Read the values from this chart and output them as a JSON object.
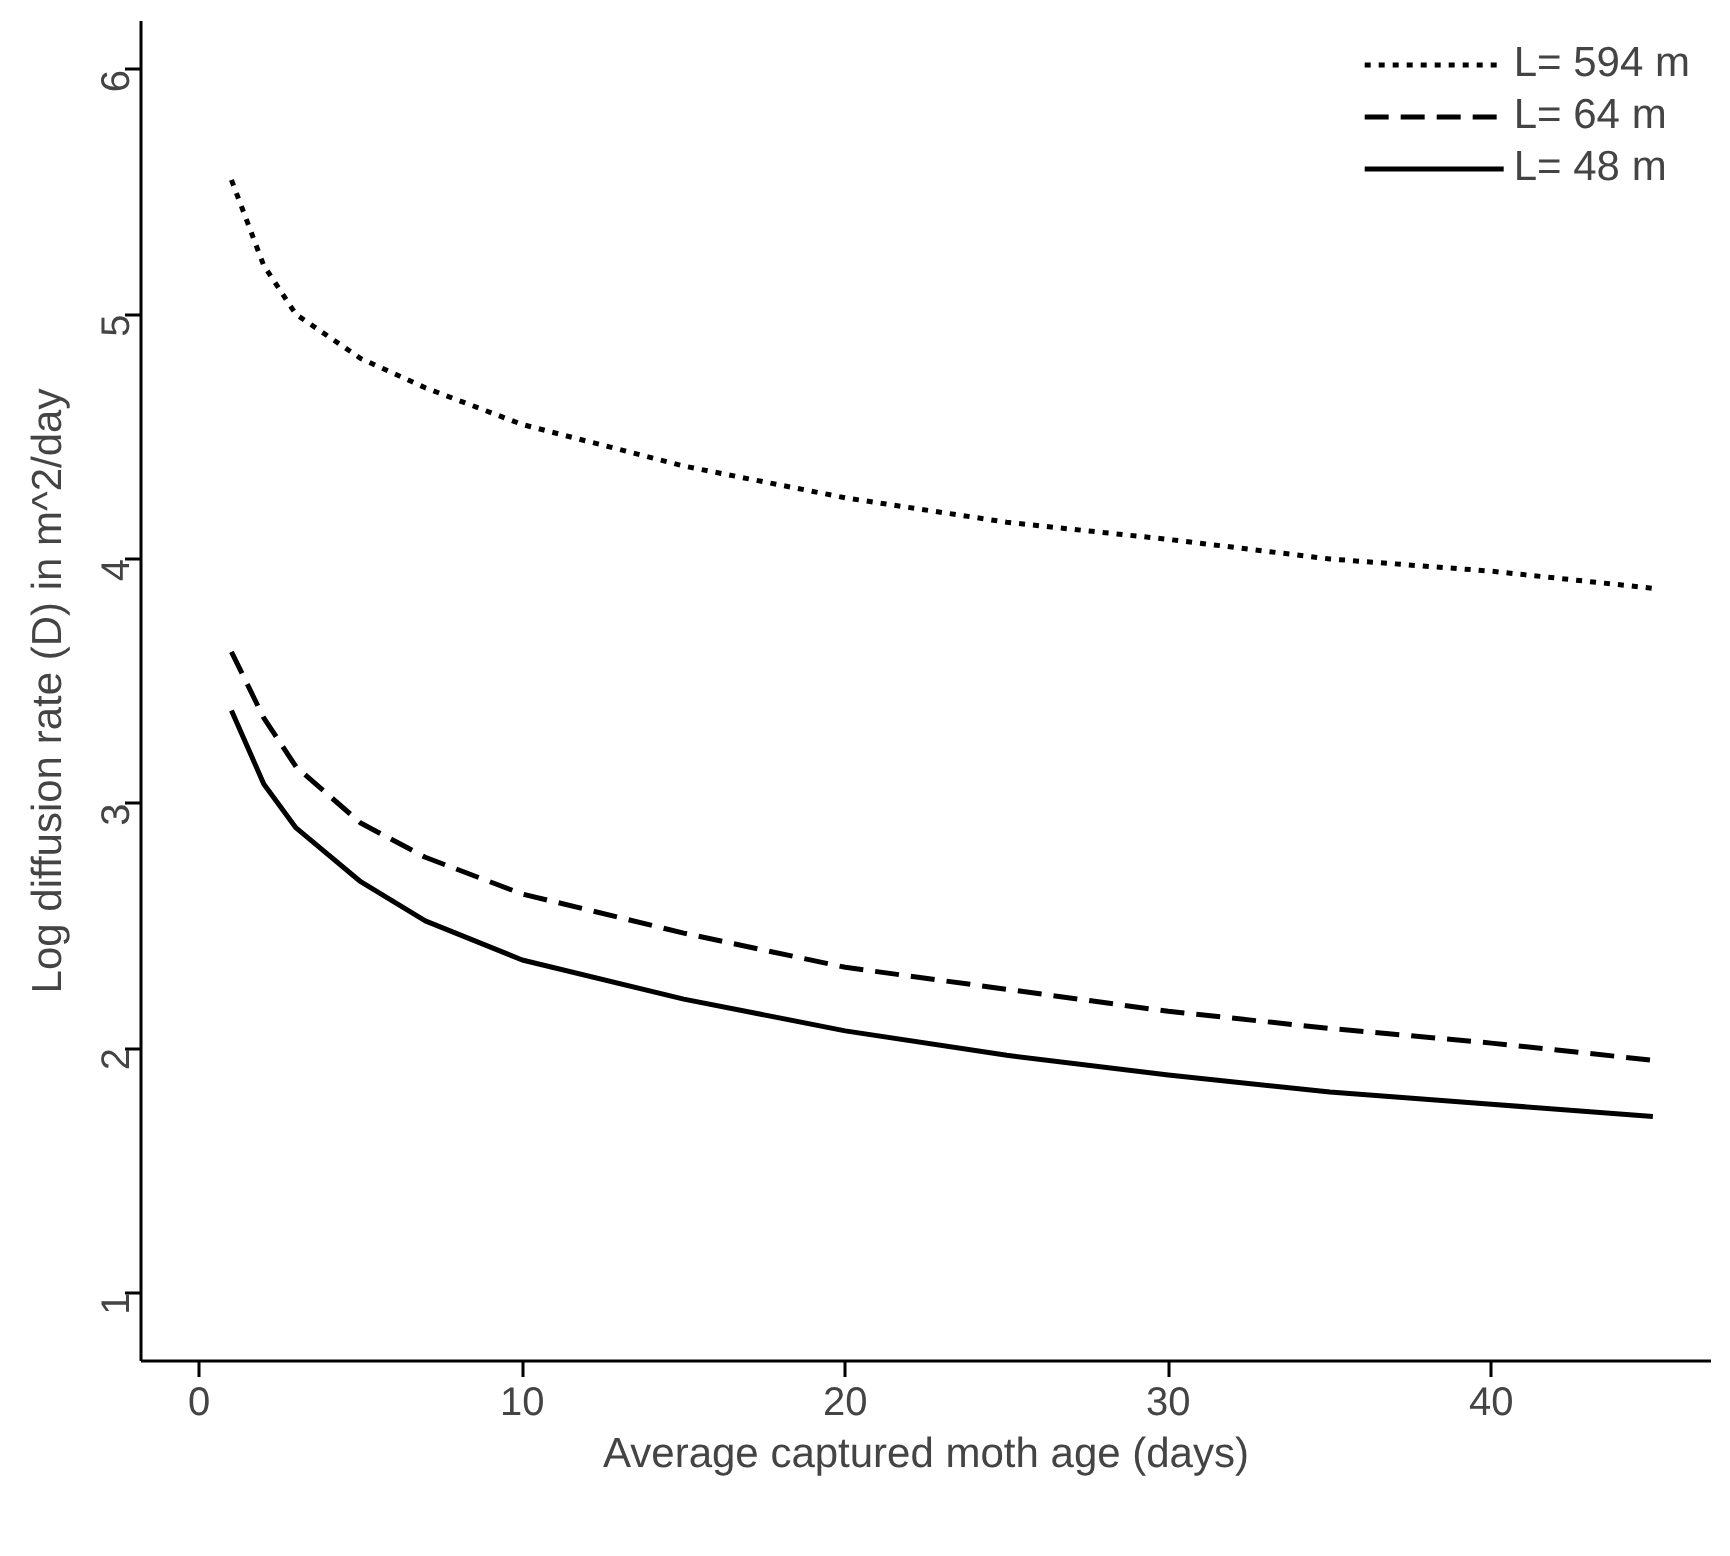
{
  "chart_data": {
    "type": "line",
    "xlabel": "Average captured moth age (days)",
    "ylabel": "Log diffusion rate (D) in m^2/day",
    "x": [
      1,
      2,
      3,
      5,
      7,
      10,
      15,
      20,
      25,
      30,
      35,
      40,
      45
    ],
    "series": [
      {
        "name": "L= 594 m",
        "color": "#000000",
        "line_style": "dotted",
        "values": [
          5.55,
          5.2,
          5.0,
          4.82,
          4.7,
          4.55,
          4.38,
          4.25,
          4.15,
          4.08,
          4.0,
          3.95,
          3.88
        ]
      },
      {
        "name": "L= 64 m",
        "color": "#000000",
        "line_style": "dashed",
        "values": [
          3.62,
          3.35,
          3.15,
          2.92,
          2.78,
          2.63,
          2.47,
          2.33,
          2.24,
          2.15,
          2.08,
          2.02,
          1.95
        ]
      },
      {
        "name": "L= 48 m",
        "color": "#000000",
        "line_style": "solid",
        "values": [
          3.38,
          3.08,
          2.9,
          2.68,
          2.52,
          2.36,
          2.2,
          2.07,
          1.97,
          1.89,
          1.82,
          1.77,
          1.72
        ]
      }
    ],
    "xlim": [
      -1.8,
      46.8
    ],
    "ylim": [
      0.72,
      6.2
    ],
    "xticks": [
      0,
      10,
      20,
      30,
      40
    ],
    "yticks": [
      1,
      2,
      3,
      4,
      5,
      6
    ],
    "legend": "top right",
    "grid": false,
    "marker": "none"
  }
}
